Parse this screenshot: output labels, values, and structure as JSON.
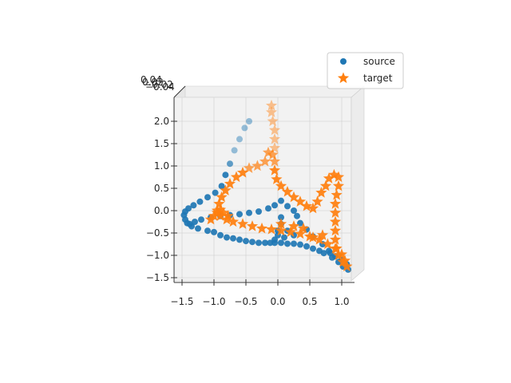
{
  "chart_data": {
    "type": "scatter",
    "projection": "3d",
    "title": "",
    "xlabel": "",
    "ylabel": "",
    "zlabel": "",
    "xlim": [
      -1.6,
      1.2
    ],
    "zlim": [
      -1.6,
      2.2
    ],
    "x_ticks": [
      "−1.5",
      "−1.0",
      "−0.5",
      "0.0",
      "0.5",
      "1.0"
    ],
    "z_ticks": [
      "2.0",
      "1.5",
      "1.0",
      "0.5",
      "0.0",
      "−0.5",
      "−1.0",
      "−1.5"
    ],
    "y_ticks_overlapping": [
      "0.04",
      "0.02",
      "−0.02",
      "−0.04"
    ],
    "grid": true,
    "legend": {
      "placement": "top-right"
    },
    "series": [
      {
        "name": "source",
        "marker": "circle",
        "color": "#1f77b4",
        "points": [
          [
            -0.45,
            2.0
          ],
          [
            -0.52,
            1.85
          ],
          [
            -0.6,
            1.6
          ],
          [
            -0.68,
            1.35
          ],
          [
            -0.75,
            1.05
          ],
          [
            -0.82,
            0.8
          ],
          [
            -0.88,
            0.55
          ],
          [
            -0.98,
            0.4
          ],
          [
            -1.1,
            0.3
          ],
          [
            -1.22,
            0.2
          ],
          [
            -1.32,
            0.12
          ],
          [
            -1.4,
            0.05
          ],
          [
            -1.45,
            -0.02
          ],
          [
            -1.47,
            -0.1
          ],
          [
            -1.45,
            -0.2
          ],
          [
            -1.42,
            -0.28
          ],
          [
            -1.35,
            -0.35
          ],
          [
            -1.25,
            -0.4
          ],
          [
            -1.1,
            -0.45
          ],
          [
            -1.0,
            -0.48
          ],
          [
            -0.9,
            -0.55
          ],
          [
            -0.8,
            -0.6
          ],
          [
            -0.7,
            -0.62
          ],
          [
            -0.6,
            -0.65
          ],
          [
            -0.5,
            -0.68
          ],
          [
            -0.4,
            -0.7
          ],
          [
            -0.3,
            -0.72
          ],
          [
            -0.2,
            -0.72
          ],
          [
            -0.12,
            -0.72
          ],
          [
            -0.05,
            -0.72
          ],
          [
            0.05,
            -0.72
          ],
          [
            0.15,
            -0.74
          ],
          [
            0.25,
            -0.74
          ],
          [
            0.35,
            -0.76
          ],
          [
            0.45,
            -0.8
          ],
          [
            0.55,
            -0.85
          ],
          [
            0.65,
            -0.9
          ],
          [
            0.72,
            -0.95
          ],
          [
            0.82,
            -0.95
          ],
          [
            0.9,
            -1.02
          ],
          [
            1.0,
            -1.1
          ],
          [
            1.08,
            -1.2
          ],
          [
            1.1,
            -1.32
          ],
          [
            1.02,
            -1.25
          ],
          [
            0.95,
            -1.15
          ],
          [
            0.85,
            -1.05
          ],
          [
            0.8,
            -0.9
          ],
          [
            0.7,
            -0.75
          ],
          [
            0.55,
            -0.58
          ],
          [
            0.45,
            -0.42
          ],
          [
            0.35,
            -0.28
          ],
          [
            0.3,
            -0.12
          ],
          [
            0.25,
            0.0
          ],
          [
            0.15,
            0.1
          ],
          [
            0.05,
            0.22
          ],
          [
            -0.05,
            0.12
          ],
          [
            -0.15,
            0.05
          ],
          [
            -0.3,
            -0.02
          ],
          [
            -0.45,
            -0.05
          ],
          [
            -0.6,
            -0.08
          ],
          [
            -0.75,
            -0.1
          ],
          [
            -0.9,
            -0.12
          ],
          [
            -1.05,
            -0.15
          ],
          [
            -1.2,
            -0.2
          ],
          [
            -1.3,
            -0.25
          ],
          [
            -1.38,
            -0.3
          ],
          [
            0.05,
            -0.15
          ],
          [
            0.05,
            -0.3
          ],
          [
            0.0,
            -0.45
          ],
          [
            0.0,
            -0.55
          ],
          [
            -0.05,
            -0.65
          ],
          [
            0.1,
            -0.6
          ],
          [
            0.15,
            -0.45
          ],
          [
            0.25,
            -0.55
          ]
        ]
      },
      {
        "name": "target",
        "marker": "star",
        "color": "#ff7f0e",
        "points": [
          [
            -0.1,
            2.35
          ],
          [
            -0.1,
            2.2
          ],
          [
            -0.08,
            2.0
          ],
          [
            -0.05,
            1.8
          ],
          [
            -0.05,
            1.6
          ],
          [
            -0.05,
            1.4
          ],
          [
            -0.15,
            1.3
          ],
          [
            -0.2,
            1.1
          ],
          [
            -0.32,
            1.0
          ],
          [
            -0.45,
            0.95
          ],
          [
            -0.55,
            0.85
          ],
          [
            -0.65,
            0.75
          ],
          [
            -0.75,
            0.6
          ],
          [
            -0.82,
            0.45
          ],
          [
            -0.88,
            0.3
          ],
          [
            -0.92,
            0.15
          ],
          [
            -0.95,
            0.0
          ],
          [
            -0.9,
            -0.12
          ],
          [
            -0.8,
            -0.2
          ],
          [
            -0.7,
            -0.25
          ],
          [
            -0.55,
            -0.3
          ],
          [
            -0.4,
            -0.35
          ],
          [
            -0.25,
            -0.4
          ],
          [
            -0.1,
            -0.42
          ],
          [
            0.05,
            -0.45
          ],
          [
            0.2,
            -0.48
          ],
          [
            0.35,
            -0.52
          ],
          [
            0.5,
            -0.58
          ],
          [
            0.65,
            -0.65
          ],
          [
            0.78,
            -0.75
          ],
          [
            0.9,
            -0.85
          ],
          [
            1.0,
            -0.98
          ],
          [
            1.05,
            -1.12
          ],
          [
            1.08,
            -1.25
          ],
          [
            1.02,
            -1.15
          ],
          [
            0.95,
            -1.0
          ],
          [
            0.92,
            -0.85
          ],
          [
            0.9,
            -0.65
          ],
          [
            0.9,
            -0.45
          ],
          [
            0.9,
            -0.25
          ],
          [
            0.9,
            -0.05
          ],
          [
            0.9,
            0.15
          ],
          [
            0.92,
            0.35
          ],
          [
            0.95,
            0.55
          ],
          [
            0.95,
            0.75
          ],
          [
            0.88,
            0.8
          ],
          [
            0.8,
            0.72
          ],
          [
            0.75,
            0.55
          ],
          [
            0.68,
            0.4
          ],
          [
            0.62,
            0.2
          ],
          [
            0.55,
            0.05
          ],
          [
            0.45,
            0.1
          ],
          [
            0.35,
            0.2
          ],
          [
            0.25,
            0.3
          ],
          [
            0.15,
            0.42
          ],
          [
            0.05,
            0.55
          ],
          [
            -0.02,
            0.7
          ],
          [
            -0.05,
            0.9
          ],
          [
            -0.05,
            1.1
          ],
          [
            -0.08,
            1.25
          ],
          [
            -0.95,
            -0.05
          ],
          [
            -1.0,
            -0.12
          ],
          [
            -0.85,
            -0.05
          ],
          [
            -0.9,
            0.02
          ],
          [
            -1.05,
            -0.2
          ],
          [
            -0.78,
            -0.12
          ],
          [
            0.05,
            -0.3
          ],
          [
            0.25,
            -0.35
          ],
          [
            0.4,
            -0.4
          ],
          [
            0.55,
            -0.6
          ],
          [
            0.7,
            -0.55
          ]
        ]
      }
    ]
  }
}
